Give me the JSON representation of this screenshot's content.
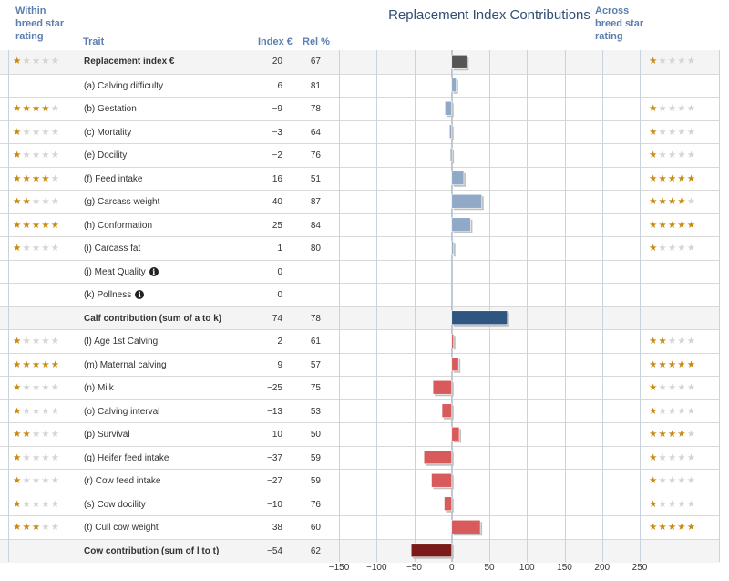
{
  "headers": {
    "within": "Within breed star rating",
    "across": "Across breed star rating",
    "trait": "Trait",
    "index": "Index €",
    "rel": "Rel %"
  },
  "chart_data": {
    "type": "bar",
    "title": "Replacement Index Contributions",
    "orientation": "horizontal",
    "xlim": [
      -150,
      250
    ],
    "xticks": [
      "−150",
      "−100",
      "−50",
      "0",
      "50",
      "100",
      "150",
      "200",
      "250"
    ],
    "xtick_values": [
      -150,
      -100,
      -50,
      0,
      50,
      100,
      150,
      200,
      250
    ],
    "grid": true,
    "colors": {
      "summary": "#555555",
      "calf": "#8fa9c6",
      "calf_total": "#2f5581",
      "cow": "#d95a5a",
      "cow_total": "#7b1a1a"
    },
    "rows": [
      {
        "trait": "Replacement index €",
        "index_display": "20",
        "value": 20,
        "rel": "67",
        "within": 1,
        "across": 1,
        "group": "summary",
        "bold": true
      },
      {
        "trait": "(a) Calving difficulty",
        "index_display": "6",
        "value": 6,
        "rel": "81",
        "within": null,
        "across": null,
        "group": "calf"
      },
      {
        "trait": "(b) Gestation",
        "index_display": "−9",
        "value": -9,
        "rel": "78",
        "within": 4,
        "across": 1,
        "group": "calf"
      },
      {
        "trait": "(c) Mortality",
        "index_display": "−3",
        "value": -3,
        "rel": "64",
        "within": 1,
        "across": 1,
        "group": "calf"
      },
      {
        "trait": "(e) Docility",
        "index_display": "−2",
        "value": -2,
        "rel": "76",
        "within": 1,
        "across": 1,
        "group": "calf"
      },
      {
        "trait": "(f) Feed intake",
        "index_display": "16",
        "value": 16,
        "rel": "51",
        "within": 4,
        "across": 5,
        "group": "calf"
      },
      {
        "trait": "(g) Carcass weight",
        "index_display": "40",
        "value": 40,
        "rel": "87",
        "within": 2,
        "across": 4,
        "group": "calf"
      },
      {
        "trait": "(h) Conformation",
        "index_display": "25",
        "value": 25,
        "rel": "84",
        "within": 5,
        "across": 5,
        "group": "calf"
      },
      {
        "trait": "(i) Carcass fat",
        "index_display": "1",
        "value": 1,
        "rel": "80",
        "within": 1,
        "across": 1,
        "group": "calf"
      },
      {
        "trait": "(j) Meat Quality",
        "index_display": "0",
        "value": 0,
        "rel": "",
        "within": null,
        "across": null,
        "group": "calf",
        "info": true
      },
      {
        "trait": "(k) Pollness",
        "index_display": "0",
        "value": 0,
        "rel": "",
        "within": null,
        "across": null,
        "group": "calf",
        "info": true
      },
      {
        "trait": "Calf contribution (sum of a to k)",
        "index_display": "74",
        "value": 74,
        "rel": "78",
        "within": null,
        "across": null,
        "group": "calf_total",
        "bold": true
      },
      {
        "trait": "(l) Age 1st Calving",
        "index_display": "2",
        "value": 2,
        "rel": "61",
        "within": 1,
        "across": 2,
        "group": "cow"
      },
      {
        "trait": "(m) Maternal calving",
        "index_display": "9",
        "value": 9,
        "rel": "57",
        "within": 5,
        "across": 5,
        "group": "cow"
      },
      {
        "trait": "(n) Milk",
        "index_display": "−25",
        "value": -25,
        "rel": "75",
        "within": 1,
        "across": 1,
        "group": "cow"
      },
      {
        "trait": "(o) Calving interval",
        "index_display": "−13",
        "value": -13,
        "rel": "53",
        "within": 1,
        "across": 1,
        "group": "cow"
      },
      {
        "trait": "(p) Survival",
        "index_display": "10",
        "value": 10,
        "rel": "50",
        "within": 2,
        "across": 4,
        "group": "cow"
      },
      {
        "trait": "(q) Heifer feed intake",
        "index_display": "−37",
        "value": -37,
        "rel": "59",
        "within": 1,
        "across": 1,
        "group": "cow"
      },
      {
        "trait": "(r) Cow feed intake",
        "index_display": "−27",
        "value": -27,
        "rel": "59",
        "within": 1,
        "across": 1,
        "group": "cow"
      },
      {
        "trait": "(s) Cow docility",
        "index_display": "−10",
        "value": -10,
        "rel": "76",
        "within": 1,
        "across": 1,
        "group": "cow"
      },
      {
        "trait": "(t) Cull cow weight",
        "index_display": "38",
        "value": 38,
        "rel": "60",
        "within": 3,
        "across": 5,
        "group": "cow"
      },
      {
        "trait": "Cow contribution (sum of l to t)",
        "index_display": "−54",
        "value": -54,
        "rel": "62",
        "within": null,
        "across": null,
        "group": "cow_total",
        "bold": true
      }
    ]
  }
}
